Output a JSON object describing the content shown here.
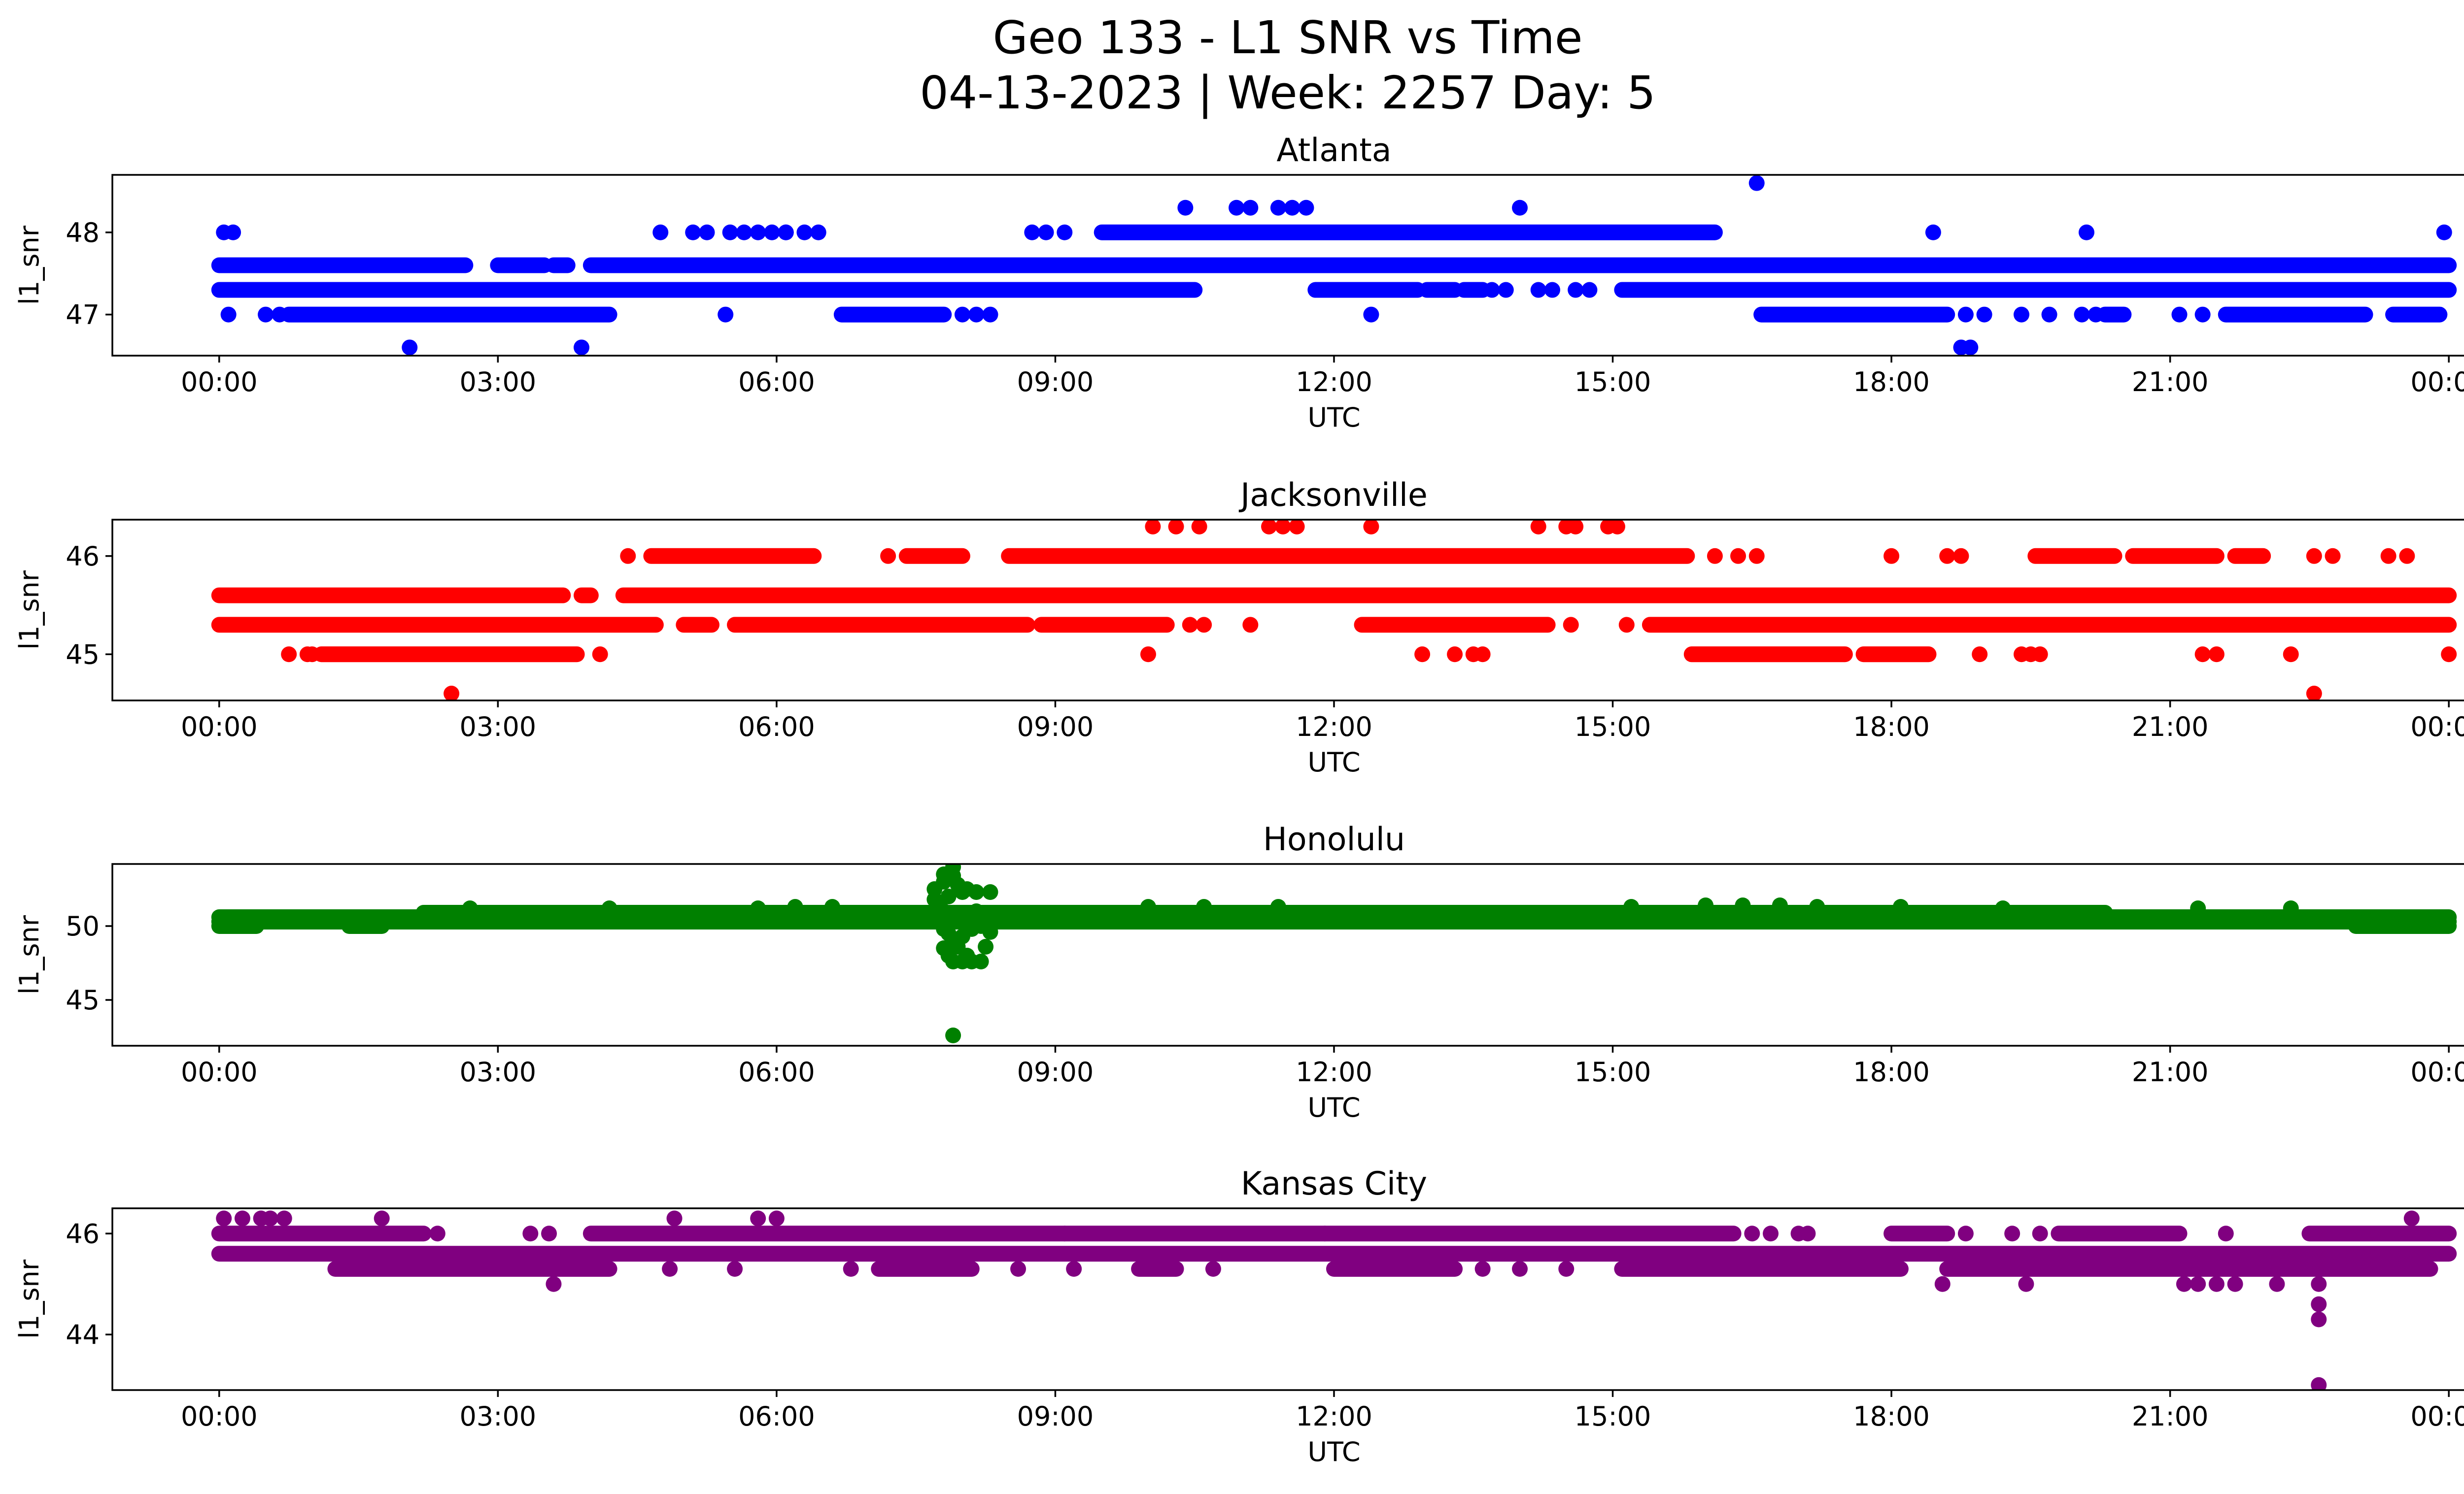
{
  "title_line1": "Geo 133 - L1 SNR vs Time",
  "title_line2": "04-13-2023 | Week: 2257 Day: 5",
  "chart_data": [
    {
      "type": "scatter",
      "title": "Atlanta",
      "color": "#0000ff",
      "xlabel": "UTC",
      "ylabel": "l1_snr",
      "xticks": [
        "00:00",
        "03:00",
        "06:00",
        "09:00",
        "12:00",
        "15:00",
        "18:00",
        "21:00",
        "00:00"
      ],
      "xlim_hours": [
        -1.15,
        25.15
      ],
      "ylim": [
        46.5,
        48.7
      ],
      "yticks": [
        47,
        48
      ],
      "bands": [
        {
          "y": 47.6,
          "segments": [
            [
              0.0,
              2.65
            ],
            [
              3.0,
              3.5
            ],
            [
              3.6,
              3.75
            ],
            [
              4.0,
              24.0
            ]
          ]
        },
        {
          "y": 47.3,
          "segments": [
            [
              0.0,
              10.5
            ],
            [
              11.8,
              12.9
            ],
            [
              13.0,
              13.3
            ],
            [
              13.4,
              13.6
            ],
            [
              15.1,
              24.0
            ]
          ]
        },
        {
          "y": 48.0,
          "segments": [
            [
              9.5,
              16.1
            ]
          ]
        },
        {
          "y": 47.0,
          "segments": [
            [
              0.75,
              4.2
            ],
            [
              6.7,
              7.8
            ],
            [
              16.6,
              18.6
            ],
            [
              20.3,
              20.5
            ],
            [
              21.6,
              23.1
            ],
            [
              23.4,
              23.9
            ]
          ]
        }
      ],
      "points": [
        [
          0.05,
          48.0
        ],
        [
          0.15,
          48.0
        ],
        [
          0.1,
          47.0
        ],
        [
          0.5,
          47.0
        ],
        [
          0.65,
          47.0
        ],
        [
          4.75,
          48.0
        ],
        [
          5.1,
          48.0
        ],
        [
          5.25,
          48.0
        ],
        [
          5.5,
          48.0
        ],
        [
          5.65,
          48.0
        ],
        [
          5.8,
          48.0
        ],
        [
          5.95,
          48.0
        ],
        [
          6.1,
          48.0
        ],
        [
          6.1,
          48.0
        ],
        [
          6.3,
          48.0
        ],
        [
          6.45,
          48.0
        ],
        [
          5.45,
          47.0
        ],
        [
          8.0,
          47.0
        ],
        [
          8.15,
          47.0
        ],
        [
          8.3,
          47.0
        ],
        [
          8.75,
          48.0
        ],
        [
          8.9,
          48.0
        ],
        [
          9.1,
          48.0
        ],
        [
          10.4,
          48.3
        ],
        [
          10.95,
          48.3
        ],
        [
          11.1,
          48.3
        ],
        [
          11.4,
          48.3
        ],
        [
          11.55,
          48.3
        ],
        [
          11.7,
          48.3
        ],
        [
          14.0,
          48.3
        ],
        [
          16.55,
          48.6
        ],
        [
          12.4,
          47.0
        ],
        [
          13.7,
          47.3
        ],
        [
          13.85,
          47.3
        ],
        [
          14.2,
          47.3
        ],
        [
          14.35,
          47.3
        ],
        [
          14.6,
          47.3
        ],
        [
          14.75,
          47.3
        ],
        [
          18.45,
          48.0
        ],
        [
          20.1,
          48.0
        ],
        [
          23.95,
          48.0
        ],
        [
          18.8,
          47.0
        ],
        [
          19.0,
          47.0
        ],
        [
          19.4,
          47.0
        ],
        [
          19.7,
          47.0
        ],
        [
          20.05,
          47.0
        ],
        [
          20.2,
          47.0
        ],
        [
          21.1,
          47.0
        ],
        [
          21.35,
          47.0
        ],
        [
          2.05,
          46.6
        ],
        [
          3.9,
          46.6
        ],
        [
          18.75,
          46.6
        ],
        [
          18.85,
          46.6
        ],
        [
          16.6,
          47.6
        ],
        [
          17.0,
          47.6
        ]
      ]
    },
    {
      "type": "scatter",
      "title": "Jacksonville",
      "color": "#ff0000",
      "xlabel": "UTC",
      "ylabel": "l1_snr",
      "xticks": [
        "00:00",
        "03:00",
        "06:00",
        "09:00",
        "12:00",
        "15:00",
        "18:00",
        "21:00",
        "00:00"
      ],
      "xlim_hours": [
        -1.15,
        25.15
      ],
      "ylim": [
        44.53,
        46.37
      ],
      "yticks": [
        45,
        46
      ],
      "bands": [
        {
          "y": 45.6,
          "segments": [
            [
              0.0,
              3.7
            ],
            [
              3.9,
              4.0
            ],
            [
              4.35,
              24.0
            ]
          ]
        },
        {
          "y": 45.3,
          "segments": [
            [
              0.0,
              4.7
            ],
            [
              5.0,
              5.3
            ],
            [
              5.55,
              8.7
            ],
            [
              8.85,
              10.2
            ],
            [
              12.3,
              14.3
            ],
            [
              15.4,
              24.0
            ]
          ]
        },
        {
          "y": 46.0,
          "segments": [
            [
              4.65,
              6.4
            ],
            [
              7.4,
              8.0
            ],
            [
              8.5,
              15.8
            ],
            [
              19.55,
              20.4
            ],
            [
              20.6,
              21.5
            ],
            [
              21.7,
              22.0
            ]
          ]
        },
        {
          "y": 45.0,
          "segments": [
            [
              1.1,
              3.85
            ],
            [
              15.85,
              17.5
            ],
            [
              17.7,
              18.4
            ]
          ]
        }
      ],
      "points": [
        [
          0.75,
          45.0
        ],
        [
          0.95,
          45.0
        ],
        [
          1.0,
          45.0
        ],
        [
          4.1,
          45.0
        ],
        [
          4.4,
          46.0
        ],
        [
          7.2,
          46.0
        ],
        [
          10.0,
          45.0
        ],
        [
          10.45,
          45.3
        ],
        [
          10.6,
          45.3
        ],
        [
          11.1,
          45.3
        ],
        [
          10.05,
          46.3
        ],
        [
          10.3,
          46.3
        ],
        [
          10.55,
          46.3
        ],
        [
          11.3,
          46.3
        ],
        [
          11.45,
          46.3
        ],
        [
          11.6,
          46.3
        ],
        [
          12.4,
          46.3
        ],
        [
          14.2,
          46.3
        ],
        [
          14.5,
          46.3
        ],
        [
          14.6,
          46.3
        ],
        [
          14.95,
          46.3
        ],
        [
          15.05,
          46.3
        ],
        [
          12.95,
          45.0
        ],
        [
          13.3,
          45.0
        ],
        [
          13.5,
          45.0
        ],
        [
          13.6,
          45.0
        ],
        [
          14.55,
          45.3
        ],
        [
          15.15,
          45.3
        ],
        [
          16.1,
          46.0
        ],
        [
          16.35,
          46.0
        ],
        [
          16.55,
          46.0
        ],
        [
          18.0,
          46.0
        ],
        [
          18.6,
          46.0
        ],
        [
          18.75,
          46.0
        ],
        [
          22.55,
          46.0
        ],
        [
          22.75,
          46.0
        ],
        [
          23.35,
          46.0
        ],
        [
          23.55,
          46.0
        ],
        [
          18.95,
          45.0
        ],
        [
          19.4,
          45.0
        ],
        [
          19.5,
          45.0
        ],
        [
          19.6,
          45.0
        ],
        [
          21.35,
          45.0
        ],
        [
          21.5,
          45.0
        ],
        [
          22.3,
          45.0
        ],
        [
          24.0,
          45.0
        ],
        [
          2.5,
          44.6
        ],
        [
          22.55,
          44.6
        ]
      ]
    },
    {
      "type": "scatter",
      "title": "Honolulu",
      "color": "#008000",
      "xlabel": "UTC",
      "ylabel": "l1_snr",
      "xticks": [
        "00:00",
        "03:00",
        "06:00",
        "09:00",
        "12:00",
        "15:00",
        "18:00",
        "21:00",
        "00:00"
      ],
      "xlim_hours": [
        -1.15,
        25.15
      ],
      "ylim": [
        41.9,
        54.2
      ],
      "yticks": [
        45,
        50
      ],
      "bands": [
        {
          "y": 50.3,
          "segments": [
            [
              0.0,
              24.0
            ]
          ]
        },
        {
          "y": 50.6,
          "segments": [
            [
              0.0,
              24.0
            ]
          ]
        },
        {
          "y": 50.9,
          "segments": [
            [
              2.2,
              20.3
            ]
          ]
        },
        {
          "y": 50.0,
          "segments": [
            [
              0.0,
              0.4
            ],
            [
              1.4,
              1.75
            ],
            [
              23.0,
              24.0
            ]
          ]
        }
      ],
      "points": [
        [
          2.7,
          51.2
        ],
        [
          4.2,
          51.2
        ],
        [
          5.8,
          51.2
        ],
        [
          6.2,
          51.3
        ],
        [
          6.6,
          51.3
        ],
        [
          10.0,
          51.3
        ],
        [
          10.6,
          51.3
        ],
        [
          11.4,
          51.3
        ],
        [
          15.2,
          51.3
        ],
        [
          16.0,
          51.4
        ],
        [
          16.4,
          51.4
        ],
        [
          16.8,
          51.4
        ],
        [
          17.2,
          51.3
        ],
        [
          18.1,
          51.3
        ],
        [
          19.2,
          51.2
        ],
        [
          21.3,
          51.2
        ],
        [
          22.3,
          51.2
        ],
        [
          7.7,
          52.5
        ],
        [
          7.8,
          53.0
        ],
        [
          7.8,
          53.5
        ],
        [
          7.85,
          52.0
        ],
        [
          7.9,
          54.0
        ],
        [
          7.9,
          53.4
        ],
        [
          7.95,
          52.8
        ],
        [
          8.0,
          52.3
        ],
        [
          8.05,
          52.5
        ],
        [
          8.15,
          52.3
        ],
        [
          8.3,
          52.3
        ],
        [
          7.7,
          51.8
        ],
        [
          7.75,
          51.5
        ],
        [
          7.8,
          49.8
        ],
        [
          7.85,
          49.5
        ],
        [
          7.9,
          49.0
        ],
        [
          7.95,
          48.6
        ],
        [
          8.0,
          49.3
        ],
        [
          8.1,
          49.8
        ],
        [
          8.2,
          50.0
        ],
        [
          8.3,
          49.6
        ],
        [
          7.8,
          48.5
        ],
        [
          7.85,
          48.0
        ],
        [
          7.9,
          47.6
        ],
        [
          8.0,
          47.6
        ],
        [
          8.05,
          48.0
        ],
        [
          8.1,
          47.6
        ],
        [
          8.2,
          47.6
        ],
        [
          8.25,
          48.6
        ],
        [
          7.75,
          50.7
        ],
        [
          7.8,
          51.0
        ],
        [
          7.85,
          50.8
        ],
        [
          7.95,
          50.5
        ],
        [
          8.05,
          50.9
        ],
        [
          8.15,
          51.0
        ],
        [
          8.25,
          50.6
        ],
        [
          8.35,
          50.5
        ],
        [
          7.9,
          42.6
        ]
      ]
    },
    {
      "type": "scatter",
      "title": "Kansas City",
      "color": "#800080",
      "xlabel": "UTC",
      "ylabel": "l1_snr",
      "xticks": [
        "00:00",
        "03:00",
        "06:00",
        "09:00",
        "12:00",
        "15:00",
        "18:00",
        "21:00",
        "00:00"
      ],
      "xlim_hours": [
        -1.15,
        25.15
      ],
      "ylim": [
        42.9,
        46.5
      ],
      "yticks": [
        44,
        46
      ],
      "bands": [
        {
          "y": 45.6,
          "segments": [
            [
              0.0,
              24.0
            ]
          ]
        },
        {
          "y": 46.0,
          "segments": [
            [
              0.0,
              2.2
            ],
            [
              4.0,
              16.3
            ],
            [
              18.0,
              18.6
            ],
            [
              19.8,
              21.1
            ],
            [
              22.5,
              24.0
            ]
          ]
        },
        {
          "y": 45.3,
          "segments": [
            [
              1.25,
              4.2
            ],
            [
              7.1,
              8.1
            ],
            [
              9.9,
              10.3
            ],
            [
              12.0,
              13.3
            ],
            [
              15.1,
              18.1
            ],
            [
              18.6,
              23.8
            ]
          ]
        }
      ],
      "points": [
        [
          0.05,
          46.3
        ],
        [
          0.25,
          46.3
        ],
        [
          0.45,
          46.3
        ],
        [
          0.55,
          46.3
        ],
        [
          0.7,
          46.3
        ],
        [
          1.75,
          46.3
        ],
        [
          4.9,
          46.3
        ],
        [
          5.8,
          46.3
        ],
        [
          6.0,
          46.3
        ],
        [
          23.6,
          46.3
        ],
        [
          3.35,
          46.0
        ],
        [
          3.55,
          46.0
        ],
        [
          2.35,
          46.0
        ],
        [
          9.1,
          46.0
        ],
        [
          11.9,
          46.0
        ],
        [
          16.5,
          46.0
        ],
        [
          16.7,
          46.0
        ],
        [
          17.0,
          46.0
        ],
        [
          17.1,
          46.0
        ],
        [
          18.8,
          46.0
        ],
        [
          19.3,
          46.0
        ],
        [
          19.6,
          46.0
        ],
        [
          21.6,
          46.0
        ],
        [
          3.6,
          45.0
        ],
        [
          18.55,
          45.0
        ],
        [
          19.45,
          45.0
        ],
        [
          21.15,
          45.0
        ],
        [
          21.3,
          45.0
        ],
        [
          21.5,
          45.0
        ],
        [
          21.7,
          45.0
        ],
        [
          22.15,
          45.0
        ],
        [
          22.6,
          45.0
        ],
        [
          4.85,
          45.3
        ],
        [
          5.55,
          45.3
        ],
        [
          6.8,
          45.3
        ],
        [
          8.6,
          45.3
        ],
        [
          9.2,
          45.3
        ],
        [
          10.7,
          45.3
        ],
        [
          13.6,
          45.3
        ],
        [
          14.0,
          45.3
        ],
        [
          14.5,
          45.3
        ],
        [
          22.6,
          44.6
        ],
        [
          22.6,
          44.3
        ],
        [
          22.6,
          43.0
        ]
      ]
    }
  ]
}
